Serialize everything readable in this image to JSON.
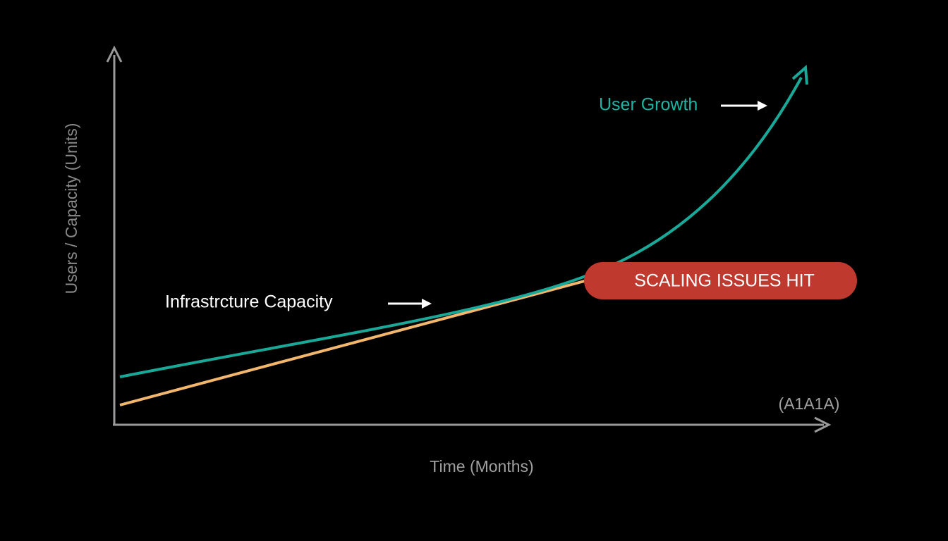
{
  "y_axis_label": "Users / Capacity (Units)",
  "x_axis_label": "Time (Months)",
  "corner_label": "(A1A1A)",
  "annotations": {
    "user_growth": "User Growth",
    "infrastructure": "Infrastrcture Capacity",
    "scaling": "SCALING ISSUES HIT"
  }
}
